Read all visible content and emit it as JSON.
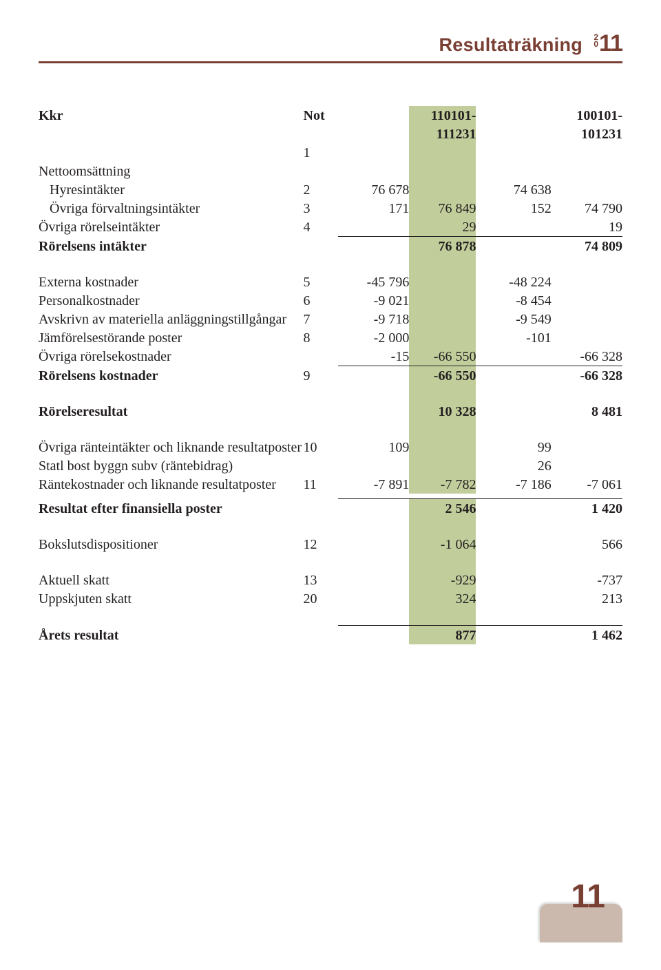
{
  "header": {
    "title": "Resultaträkning",
    "year_prefix": "20",
    "year_suffix": "11"
  },
  "columns": {
    "kkr": "Kkr",
    "not": "Not",
    "p1a": "110101-",
    "p1b": "111231",
    "p2a": "100101-",
    "p2b": "101231",
    "note1": "1"
  },
  "rows": {
    "netto": {
      "l": "Nettoomsättning"
    },
    "hyres": {
      "l": "Hyresintäkter",
      "not": "2",
      "a": "76 678",
      "c": "74 638"
    },
    "forv": {
      "l": "Övriga förvaltningsintäkter",
      "not": "3",
      "a": "171",
      "b": "76 849",
      "c": "152",
      "d": "74 790"
    },
    "ror": {
      "l": "Övriga rörelseintäkter",
      "not": "4",
      "b": "29",
      "d": "19"
    },
    "rint": {
      "l": "Rörelsens intäkter",
      "b": "76 878",
      "d": "74 809"
    },
    "ext": {
      "l": "Externa kostnader",
      "not": "5",
      "a": "-45 796",
      "c": "-48 224"
    },
    "pers": {
      "l": "Personalkostnader",
      "not": "6",
      "a": "-9 021",
      "c": "-8 454"
    },
    "avs": {
      "l": "Avskrivn av materiella anläggningstillgångar",
      "not": "7",
      "a": "-9 718",
      "c": "-9 549"
    },
    "jmf": {
      "l": "Jämförelsestörande poster",
      "not": "8",
      "a": "-2 000",
      "c": "-101"
    },
    "ovk": {
      "l": "Övriga rörelsekostnader",
      "a": "-15",
      "b": "-66 550",
      "d": "-66 328"
    },
    "rk": {
      "l": "Rörelsens kostnader",
      "not": "9",
      "b": "-66 550",
      "d": "-66 328"
    },
    "rres": {
      "l": "Rörelseresultat",
      "b": "10 328",
      "d": "8 481"
    },
    "rint2": {
      "l": "Övriga ränteintäkter och liknande resultatposter",
      "not": "10",
      "a": "109",
      "c": "99"
    },
    "statl": {
      "l": "Statl bost byggn subv (räntebidrag)",
      "c": "26"
    },
    "rkost": {
      "l": "Räntekostnader och liknande resultatposter",
      "not": "11",
      "a": "-7 891",
      "b": "-7 782",
      "c": "-7 186",
      "d": "-7 061"
    },
    "rfin": {
      "l": "Resultat efter finansiella poster",
      "b": "2 546",
      "d": "1 420"
    },
    "bok": {
      "l": "Bokslutsdispositioner",
      "not": "12",
      "b": "-1 064",
      "d": "566"
    },
    "akt": {
      "l": "Aktuell skatt",
      "not": "13",
      "b": "-929",
      "d": "-737"
    },
    "upp": {
      "l": "Uppskjuten skatt",
      "not": "20",
      "b": "324",
      "d": "213"
    },
    "ar": {
      "l": "Årets resultat",
      "b": "877",
      "d": "1 462"
    }
  },
  "pageNumber": "11"
}
